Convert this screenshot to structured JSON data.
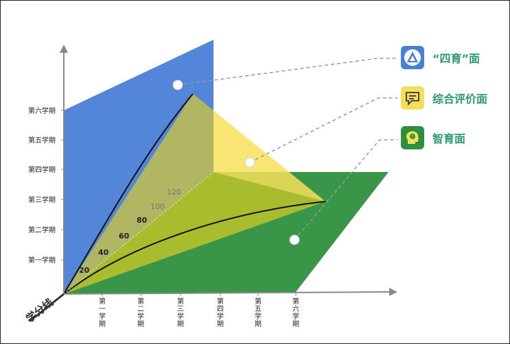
{
  "y_axis": {
    "ticks": [
      "第一学期",
      "第二学期",
      "第三学期",
      "第四学期",
      "第五学期",
      "第六学期"
    ]
  },
  "x_axis": {
    "ticks": [
      "第一学期",
      "第二学期",
      "第三学期",
      "第四学期",
      "第五学期",
      "第六学期"
    ]
  },
  "credit_axis": {
    "label": "学分线",
    "ticks": [
      "20",
      "40",
      "60",
      "80",
      "100",
      "120"
    ]
  },
  "legend": [
    {
      "label": "“四育”面",
      "icon": "triangle-logo-icon",
      "color": "#4a7fd6"
    },
    {
      "label": "综合评价面",
      "icon": "chat-bubble-icon",
      "color": "#f5de5a"
    },
    {
      "label": "智育面",
      "icon": "head-idea-icon",
      "color": "#2e8f3e"
    }
  ],
  "colors": {
    "blue_plane": "#4a7fd6",
    "yellow_plane": "#f7e15a",
    "green_plane": "#2e8f3e",
    "overlap": "#a8b83a",
    "text_accent": "#2a9a6a"
  }
}
